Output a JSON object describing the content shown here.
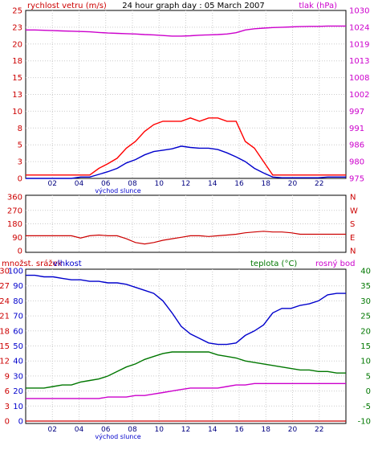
{
  "chart_data": [
    {
      "type": "line",
      "title": "24 hour graph day : 05 March 2007",
      "left_label": "rychlost vetru (m/s)",
      "right_label": "tlak (hPa)",
      "left_ticks": [
        "0",
        "3",
        "5",
        "8",
        "10",
        "13",
        "15",
        "18",
        "20",
        "23",
        "25"
      ],
      "right_ticks": [
        "975",
        "980",
        "986",
        "991",
        "997",
        "1002",
        "1008",
        "1013",
        "1019",
        "1024",
        "1030"
      ],
      "x_ticks": [
        "02",
        "04",
        "06",
        "08",
        "10",
        "12",
        "14",
        "16",
        "18",
        "20",
        "22"
      ],
      "sunrise_label": "východ slunce",
      "ylim": [
        0,
        25
      ],
      "y2lim": [
        975,
        1030
      ],
      "colors": {
        "gust": "#ff0000",
        "wind": "#0000cc",
        "pressure": "#cc00cc",
        "axis_left": "#cc0000",
        "axis_right": "#cc00cc"
      },
      "series": [
        {
          "values": [
            0.5,
            0.5,
            0.5,
            0.5,
            0.5,
            0.5,
            0.5,
            0.5,
            1.5,
            2.2,
            3.0,
            4.5,
            5.5,
            7.0,
            8.0,
            8.5,
            8.5,
            8.5,
            9.0,
            8.5,
            9.0,
            9.0,
            8.5,
            8.5,
            5.5,
            4.5,
            2.5,
            0.5,
            0.5,
            0.5,
            0.5,
            0.5,
            0.5,
            0.5,
            0.5,
            0.5
          ]
        },
        {
          "values": [
            0,
            0,
            0,
            0,
            0,
            0,
            0.2,
            0.2,
            0.6,
            1.0,
            1.5,
            2.3,
            2.8,
            3.5,
            4.0,
            4.2,
            4.4,
            4.8,
            4.6,
            4.5,
            4.5,
            4.3,
            3.8,
            3.2,
            2.5,
            1.5,
            0.8,
            0.2,
            0.1,
            0.1,
            0.1,
            0.1,
            0.1,
            0.2,
            0.2,
            0.2
          ]
        },
        {
          "values": [
            1023.6,
            1023.6,
            1023.5,
            1023.4,
            1023.3,
            1023.2,
            1023.1,
            1023.0,
            1022.8,
            1022.6,
            1022.5,
            1022.4,
            1022.3,
            1022.1,
            1022.0,
            1021.8,
            1021.6,
            1021.6,
            1021.7,
            1021.9,
            1022.0,
            1022.1,
            1022.3,
            1022.7,
            1023.6,
            1024.0,
            1024.2,
            1024.4,
            1024.5,
            1024.6,
            1024.7,
            1024.8,
            1024.8,
            1024.9,
            1024.9,
            1024.9
          ]
        }
      ]
    },
    {
      "type": "line",
      "left_ticks": [
        "0",
        "90",
        "180",
        "270",
        "360"
      ],
      "right_ticks": [
        "N",
        "E",
        "S",
        "W",
        "N"
      ],
      "ylim": [
        0,
        360
      ],
      "colors": {
        "direction": "#cc0000"
      },
      "series": [
        {
          "values": [
            100,
            100,
            100,
            100,
            100,
            100,
            85,
            100,
            105,
            100,
            100,
            80,
            55,
            45,
            55,
            70,
            80,
            90,
            100,
            100,
            95,
            100,
            105,
            110,
            120,
            125,
            130,
            125,
            125,
            120,
            110,
            110,
            110,
            110,
            110,
            110
          ]
        }
      ]
    },
    {
      "type": "line",
      "left_label": "množst. srážek",
      "left2_label": "vlhkost",
      "right_label": "teplota (°C)",
      "right2_label": "rosný bod",
      "left_ticks": [
        "0",
        "3",
        "6",
        "9",
        "12",
        "15",
        "18",
        "21",
        "24",
        "27",
        "30"
      ],
      "left2_ticks": [
        "0",
        "10",
        "20",
        "30",
        "40",
        "50",
        "60",
        "70",
        "80",
        "90",
        "100"
      ],
      "right_ticks": [
        "-10",
        "-5",
        "0",
        "5",
        "10",
        "15",
        "20",
        "25",
        "30",
        "35",
        "40"
      ],
      "x_ticks": [
        "02",
        "04",
        "06",
        "08",
        "10",
        "12",
        "14",
        "16",
        "18",
        "20",
        "22"
      ],
      "sunrise_label": "východ slunce",
      "colors": {
        "humidity": "#0000cc",
        "temperature": "#007700",
        "dewpoint": "#cc00cc",
        "rain": "#cc0000",
        "axis_left": "#cc0000",
        "axis_left2": "#0000cc",
        "axis_right": "#007700"
      },
      "series": [
        {
          "values": [
            97,
            97,
            96,
            96,
            95,
            94,
            94,
            93,
            93,
            92,
            92,
            91,
            89,
            87,
            85,
            80,
            72,
            63,
            58,
            55,
            52,
            51,
            51,
            52,
            57,
            60,
            64,
            72,
            75,
            75,
            77,
            78,
            80,
            84,
            85,
            85
          ]
        },
        {
          "values": [
            1,
            1,
            1,
            1.5,
            2,
            2,
            3,
            3.5,
            4,
            5,
            6.5,
            8,
            9,
            10.5,
            11.5,
            12.5,
            13,
            13,
            13,
            13,
            13,
            12,
            11.5,
            11,
            10,
            9.5,
            9,
            8.5,
            8,
            7.5,
            7,
            7,
            6.5,
            6.5,
            6,
            6
          ]
        },
        {
          "values": [
            -2.5,
            -2.5,
            -2.5,
            -2.5,
            -2.5,
            -2.5,
            -2.5,
            -2.5,
            -2.5,
            -2,
            -2,
            -2,
            -1.5,
            -1.5,
            -1,
            -0.5,
            0,
            0.5,
            1,
            1,
            1,
            1,
            1.5,
            2,
            2,
            2.5,
            2.5,
            2.5,
            2.5,
            2.5,
            2.5,
            2.5,
            2.5,
            2.5,
            2.5,
            2.5
          ]
        },
        {
          "values": [
            0,
            0,
            0,
            0,
            0,
            0,
            0,
            0,
            0,
            0,
            0,
            0,
            0,
            0,
            0,
            0,
            0,
            0,
            0,
            0,
            0,
            0,
            0,
            0,
            0,
            0,
            0,
            0,
            0,
            0,
            0,
            0,
            0,
            0,
            0,
            0
          ]
        }
      ]
    }
  ]
}
